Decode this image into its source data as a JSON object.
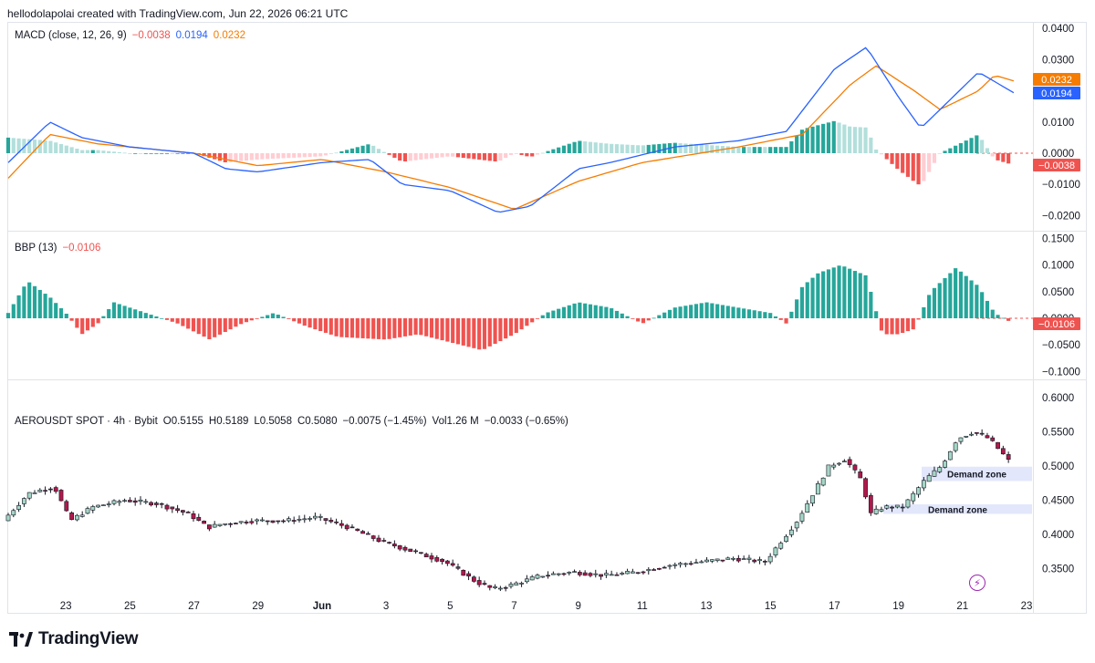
{
  "header": {
    "credit": "hellodolapolai created with TradingView.com, Jun 22, 2026 06:21 UTC"
  },
  "brand": {
    "name": "TradingView",
    "icon": "tradingview-logo-icon"
  },
  "colors": {
    "up": "#26a69a",
    "down": "#ef5350",
    "macd": "#2962ff",
    "signal": "#f57c00",
    "hist_up_strong": "#26a69a",
    "hist_up_weak": "#b2dfdb",
    "hist_down_strong": "#ef5350",
    "hist_down_weak": "#ffcdd2",
    "candle_up": "#a5d6c6",
    "candle_down": "#b2184b",
    "zone": "#e3e7fb"
  },
  "macd_panel": {
    "title": "MACD (close, 12, 26, 9)",
    "values": {
      "hist": "−0.0038",
      "macd": "0.0194",
      "signal": "0.0232"
    },
    "axis_labels": [
      "0.0400",
      "0.0300",
      "0.0200",
      "0.0100",
      "0.0000",
      "−0.0100",
      "−0.0200"
    ],
    "tags": {
      "signal": "0.0232",
      "macd": "0.0194",
      "hist": "−0.0038"
    }
  },
  "bbp_panel": {
    "title": "BBP (13)",
    "value": "−0.0106",
    "axis_labels": [
      "0.1500",
      "0.1000",
      "0.0500",
      "0.0000",
      "−0.0500",
      "−0.1000"
    ],
    "tag": "−0.0106"
  },
  "price_panel": {
    "title": "AEROUSDT SPOT · 4h · Bybit",
    "ohlc": {
      "o": "O0.5155",
      "h": "H0.5189",
      "l": "L0.5058",
      "c": "C0.5080",
      "chg": "−0.0075 (−1.45%)",
      "vol": "Vol1.26 M",
      "vchg": "−0.0033 (−0.65%)"
    },
    "axis_labels": [
      "0.6000",
      "0.5500",
      "0.5000",
      "0.4500",
      "0.4000",
      "0.3500"
    ],
    "zones": [
      "Demand zone",
      "Demand zone"
    ]
  },
  "x_axis": {
    "labels": [
      "23",
      "25",
      "27",
      "29",
      "Jun",
      "3",
      "5",
      "7",
      "9",
      "11",
      "13",
      "15",
      "17",
      "19",
      "21",
      "23"
    ]
  },
  "chart_data": {
    "type": "candlestick",
    "symbol": "AEROUSDT SPOT · 4h · Bybit",
    "x_ticks": [
      "23",
      "25",
      "27",
      "29",
      "Jun",
      "3",
      "5",
      "7",
      "9",
      "11",
      "13",
      "15",
      "17",
      "19",
      "21",
      "23"
    ],
    "price_path_approx": [
      [
        21.2,
        0.42
      ],
      [
        22,
        0.46
      ],
      [
        22.8,
        0.47
      ],
      [
        23.3,
        0.42
      ],
      [
        24,
        0.44
      ],
      [
        25,
        0.45
      ],
      [
        26,
        0.445
      ],
      [
        27,
        0.43
      ],
      [
        27.6,
        0.41
      ],
      [
        28,
        0.415
      ],
      [
        29,
        0.42
      ],
      [
        30,
        0.42
      ],
      [
        31,
        0.425
      ],
      [
        32,
        0.41
      ],
      [
        33,
        0.39
      ],
      [
        34,
        0.375
      ],
      [
        35,
        0.36
      ],
      [
        36,
        0.33
      ],
      [
        36.5,
        0.32
      ],
      [
        37,
        0.325
      ],
      [
        38,
        0.34
      ],
      [
        39,
        0.345
      ],
      [
        40,
        0.34
      ],
      [
        41,
        0.345
      ],
      [
        42,
        0.355
      ],
      [
        43,
        0.36
      ],
      [
        44,
        0.365
      ],
      [
        45,
        0.36
      ],
      [
        46,
        0.42
      ],
      [
        46.5,
        0.46
      ],
      [
        47,
        0.5
      ],
      [
        47.5,
        0.51
      ],
      [
        48,
        0.48
      ],
      [
        48.3,
        0.43
      ],
      [
        48.7,
        0.44
      ],
      [
        49.3,
        0.44
      ],
      [
        50,
        0.48
      ],
      [
        50.5,
        0.5
      ],
      [
        51,
        0.54
      ],
      [
        51.5,
        0.55
      ],
      [
        52,
        0.54
      ],
      [
        52.6,
        0.508
      ]
    ],
    "demand_zones": [
      [
        0.478,
        0.499
      ],
      [
        0.43,
        0.444
      ]
    ],
    "macd_path_approx": [
      [
        21.2,
        -0.003
      ],
      [
        22.5,
        0.01
      ],
      [
        23.5,
        0.005
      ],
      [
        25,
        0.002
      ],
      [
        27,
        0.0
      ],
      [
        28,
        -0.005
      ],
      [
        29,
        -0.006
      ],
      [
        31,
        -0.003
      ],
      [
        32.5,
        -0.002
      ],
      [
        33.5,
        -0.01
      ],
      [
        35,
        -0.012
      ],
      [
        36.5,
        -0.019
      ],
      [
        37.5,
        -0.017
      ],
      [
        39,
        -0.005
      ],
      [
        40,
        -0.003
      ],
      [
        42,
        0.002
      ],
      [
        44,
        0.004
      ],
      [
        45.5,
        0.007
      ],
      [
        47,
        0.027
      ],
      [
        48,
        0.034
      ],
      [
        49,
        0.018
      ],
      [
        49.7,
        0.008
      ],
      [
        50.5,
        0.016
      ],
      [
        51.5,
        0.026
      ],
      [
        52.6,
        0.0194
      ]
    ],
    "signal_path_approx": [
      [
        21.2,
        -0.008
      ],
      [
        22.5,
        0.006
      ],
      [
        24,
        0.003
      ],
      [
        27,
        0.0
      ],
      [
        29,
        -0.004
      ],
      [
        31,
        -0.002
      ],
      [
        33,
        -0.006
      ],
      [
        35,
        -0.011
      ],
      [
        37,
        -0.018
      ],
      [
        39,
        -0.009
      ],
      [
        41,
        -0.003
      ],
      [
        44,
        0.002
      ],
      [
        46,
        0.006
      ],
      [
        47.5,
        0.022
      ],
      [
        48.3,
        0.028
      ],
      [
        49.5,
        0.02
      ],
      [
        50.3,
        0.014
      ],
      [
        51.5,
        0.02
      ],
      [
        52,
        0.025
      ],
      [
        52.6,
        0.0232
      ]
    ],
    "macd_values": {
      "hist": -0.0038,
      "macd": 0.0194,
      "signal": 0.0232
    },
    "bbp_path_approx": [
      [
        21.2,
        0.01
      ],
      [
        21.8,
        0.07
      ],
      [
        22.5,
        0.04
      ],
      [
        23,
        0.01
      ],
      [
        23.5,
        -0.03
      ],
      [
        24,
        -0.01
      ],
      [
        24.5,
        0.03
      ],
      [
        25.5,
        0.01
      ],
      [
        26.5,
        -0.01
      ],
      [
        27.5,
        -0.04
      ],
      [
        28.5,
        -0.01
      ],
      [
        29.5,
        0.01
      ],
      [
        30.5,
        -0.015
      ],
      [
        31.5,
        -0.035
      ],
      [
        33,
        -0.04
      ],
      [
        34,
        -0.03
      ],
      [
        35,
        -0.045
      ],
      [
        36,
        -0.06
      ],
      [
        37,
        -0.03
      ],
      [
        38,
        0.01
      ],
      [
        39,
        0.03
      ],
      [
        40,
        0.02
      ],
      [
        41,
        -0.01
      ],
      [
        42,
        0.02
      ],
      [
        43,
        0.03
      ],
      [
        44,
        0.02
      ],
      [
        45,
        0.01
      ],
      [
        45.5,
        -0.01
      ],
      [
        46,
        0.06
      ],
      [
        46.5,
        0.085
      ],
      [
        47.2,
        0.1
      ],
      [
        48,
        0.08
      ],
      [
        48.5,
        -0.03
      ],
      [
        49,
        -0.03
      ],
      [
        49.5,
        -0.02
      ],
      [
        50,
        0.05
      ],
      [
        50.8,
        0.095
      ],
      [
        51.5,
        0.06
      ],
      [
        52,
        0.01
      ],
      [
        52.6,
        -0.0106
      ]
    ],
    "bbp_value": -0.0106,
    "macd_ylim": [
      -0.025,
      0.04
    ],
    "bbp_ylim": [
      -0.11,
      0.155
    ],
    "price_ylim": [
      0.33,
      0.61
    ]
  }
}
